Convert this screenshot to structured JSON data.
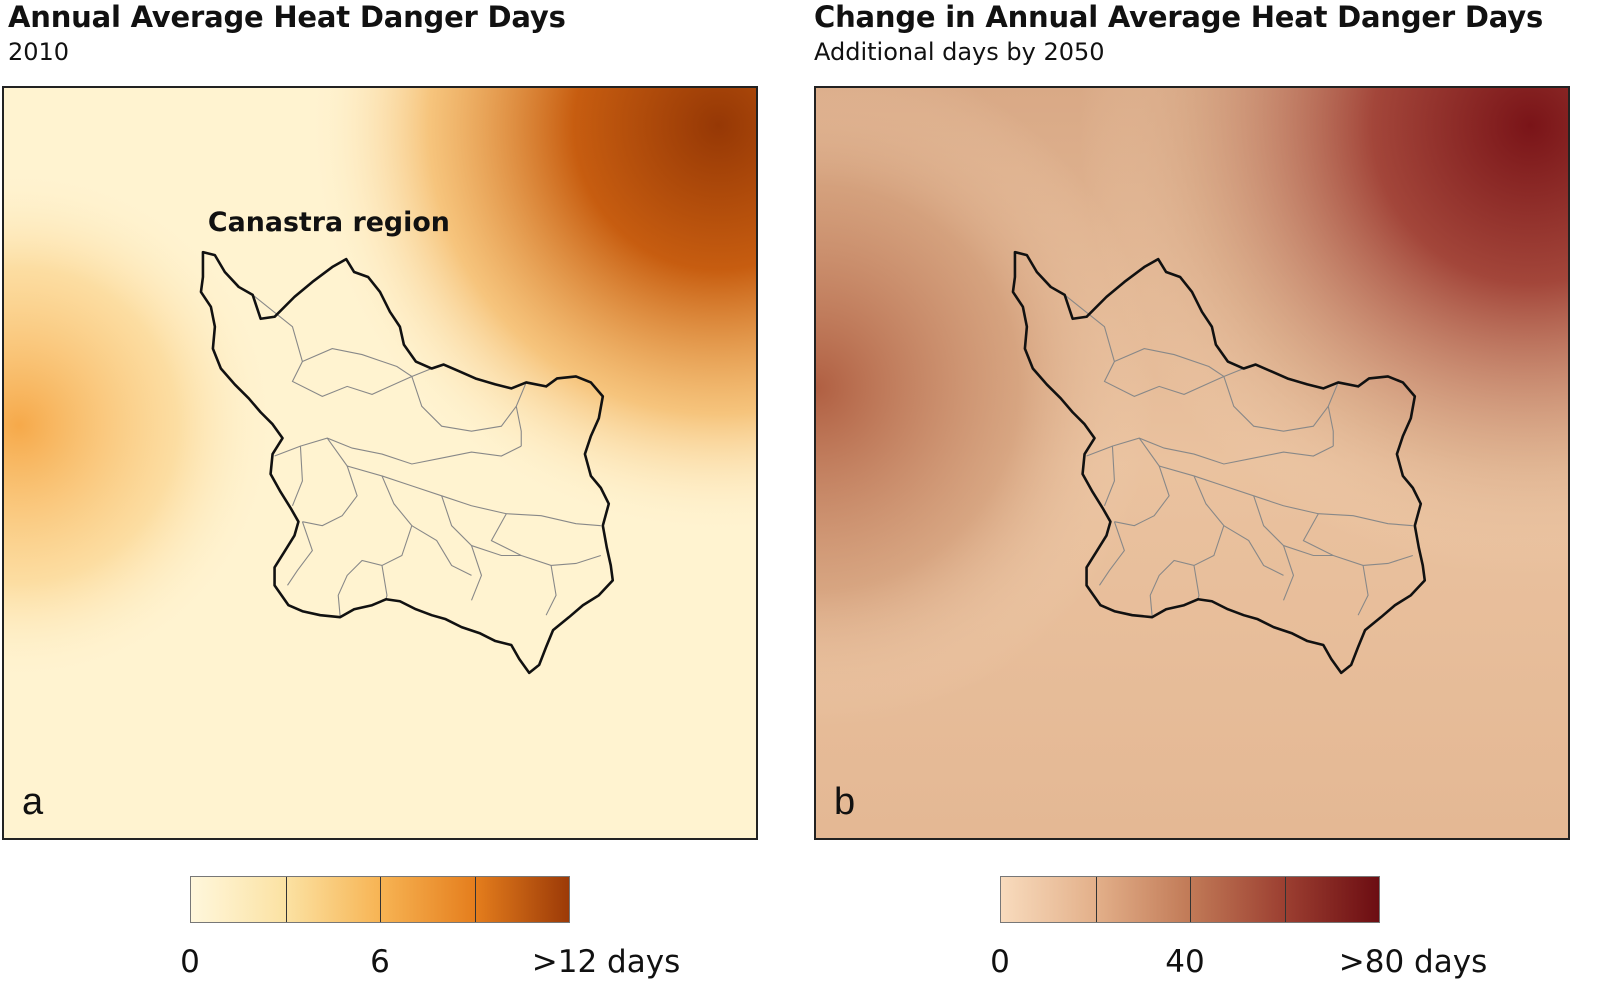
{
  "panels": [
    {
      "title": "Annual Average Heat Danger Days",
      "subtitle": "2010",
      "letter": "a",
      "region_label": "Canastra region",
      "legend": {
        "ticks": [
          "0",
          "6",
          ">12 days"
        ],
        "colors": [
          "#fff7dc",
          "#fbe2a3",
          "#f7b454",
          "#e57e1d",
          "#9c3a07"
        ]
      }
    },
    {
      "title": "Change in Annual Average Heat Danger Days",
      "subtitle": "Additional days by 2050",
      "letter": "b",
      "legend": {
        "ticks": [
          "0",
          "40",
          ">80 days"
        ],
        "colors": [
          "#f8dbbd",
          "#e3b08a",
          "#c17a57",
          "#9c3f31",
          "#6c0d12"
        ]
      }
    }
  ],
  "colors": {
    "a_light": "#fff5d6",
    "a_mid": "#f6a94a",
    "a_dark": "#963805",
    "b_light": "#f6d9ba",
    "b_mid": "#c98e6a",
    "b_dark": "#7a1418",
    "outline": "#111111",
    "subdivisions": "#888888"
  }
}
